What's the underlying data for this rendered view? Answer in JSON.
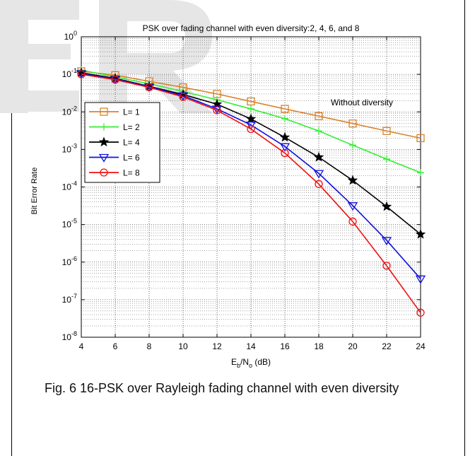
{
  "chart_data": {
    "type": "line",
    "title": "PSK over fading channel with even diversity:2, 4, 6, and 8",
    "xlabel_main": "E",
    "xlabel_sub_b": "b",
    "xlabel_slash": "/N",
    "xlabel_sub_o": "o",
    "xlabel_unit": " (dB)",
    "ylabel": "Bit Error Rate",
    "xlim": [
      4,
      24
    ],
    "ylim": [
      1e-08,
      1
    ],
    "yscale": "log",
    "grid": true,
    "legend_position": "top-left",
    "x": [
      4,
      6,
      8,
      10,
      12,
      14,
      16,
      18,
      20,
      22,
      24
    ],
    "x_ticks": [
      "4",
      "6",
      "8",
      "10",
      "12",
      "14",
      "16",
      "18",
      "20",
      "22",
      "24"
    ],
    "y_tick_exponents": [
      "0",
      "-1",
      "-2",
      "-3",
      "-4",
      "-5",
      "-6",
      "-7",
      "-8"
    ],
    "y_tick_base": "10",
    "annotation": "Without diversity",
    "series": [
      {
        "name": "L= 1",
        "color": "#d9822b",
        "marker": "square",
        "values": [
          0.12,
          0.095,
          0.065,
          0.045,
          0.03,
          0.019,
          0.012,
          0.0077,
          0.0049,
          0.0031,
          0.002
        ]
      },
      {
        "name": "L= 2",
        "color": "#33ee33",
        "marker": "plus",
        "values": [
          0.13,
          0.085,
          0.056,
          0.035,
          0.021,
          0.012,
          0.0066,
          0.0031,
          0.0013,
          0.00055,
          0.00024
        ]
      },
      {
        "name": "L= 4",
        "color": "#000000",
        "marker": "star",
        "values": [
          0.11,
          0.078,
          0.048,
          0.029,
          0.016,
          0.0065,
          0.0021,
          0.00062,
          0.00015,
          3e-05,
          5.5e-06
        ]
      },
      {
        "name": "L= 6",
        "color": "#1010dd",
        "marker": "triangle",
        "values": [
          0.105,
          0.075,
          0.047,
          0.027,
          0.012,
          0.0045,
          0.0012,
          0.00023,
          3.2e-05,
          3.8e-06,
          3.6e-07
        ]
      },
      {
        "name": "L= 8",
        "color": "#ee1111",
        "marker": "circle",
        "values": [
          0.1,
          0.072,
          0.045,
          0.025,
          0.011,
          0.0035,
          0.0008,
          0.00012,
          1.2e-05,
          8e-07,
          4.5e-08
        ]
      }
    ]
  },
  "caption": {
    "text": "Fig. 6  16-PSK over Rayleigh fading channel with even diversity"
  }
}
